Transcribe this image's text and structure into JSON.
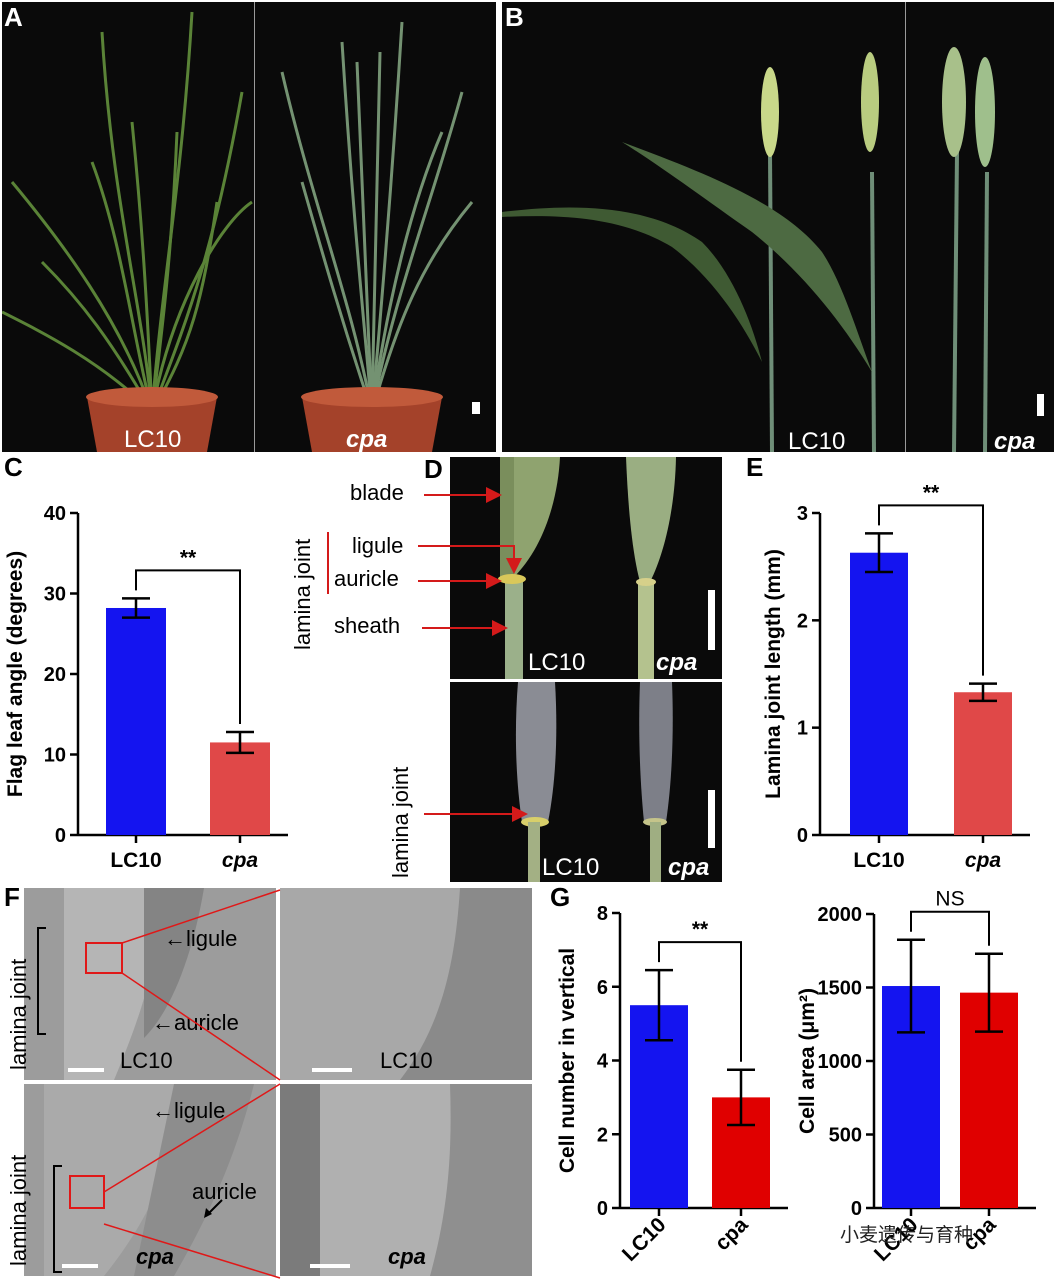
{
  "panels": {
    "A": {
      "letter": "A",
      "labels": [
        "LC10",
        "cpa"
      ]
    },
    "B": {
      "letter": "B",
      "labels": [
        "LC10",
        "cpa"
      ]
    },
    "C": {
      "letter": "C"
    },
    "D": {
      "letter": "D",
      "annotations": {
        "blade": "blade",
        "ligule": "ligule",
        "auricle": "auricle",
        "sheath": "sheath",
        "lamina_joint": "lamina joint"
      },
      "labels": [
        "LC10",
        "cpa"
      ]
    },
    "E": {
      "letter": "E"
    },
    "F": {
      "letter": "F",
      "annotations": {
        "ligule": "←ligule",
        "auricle": "←auricle",
        "auricle2": "auricle",
        "lamina_joint": "lamina joint"
      },
      "labels": [
        "LC10",
        "cpa"
      ]
    },
    "G": {
      "letter": "G"
    }
  },
  "watermark": "小麦遗传与育种",
  "chart_data": [
    {
      "id": "C",
      "type": "bar",
      "categories": [
        "LC10",
        "cpa"
      ],
      "values": [
        28.2,
        11.5
      ],
      "errors": [
        1.2,
        1.3
      ],
      "colors": [
        "#1414f0",
        "#e04848"
      ],
      "ylabel": "Flag leaf angle (degrees)",
      "ylim": [
        0,
        40
      ],
      "yticks": [
        0,
        10,
        20,
        30,
        40
      ],
      "significance": "**"
    },
    {
      "id": "E",
      "type": "bar",
      "categories": [
        "LC10",
        "cpa"
      ],
      "values": [
        2.63,
        1.33
      ],
      "errors": [
        0.18,
        0.08
      ],
      "colors": [
        "#1414f0",
        "#e04848"
      ],
      "ylabel": "Lamina joint length (mm)",
      "ylim": [
        0,
        3
      ],
      "yticks": [
        0,
        1,
        2,
        3
      ],
      "significance": "**"
    },
    {
      "id": "G1",
      "type": "bar",
      "categories": [
        "LC10",
        "cpa"
      ],
      "values": [
        5.5,
        3.0
      ],
      "errors": [
        0.95,
        0.75
      ],
      "colors": [
        "#1414f0",
        "#e00000"
      ],
      "ylabel": "Cell number in vertical",
      "ylim": [
        0,
        8
      ],
      "yticks": [
        0,
        2,
        4,
        6,
        8
      ],
      "significance": "**"
    },
    {
      "id": "G2",
      "type": "bar",
      "categories": [
        "LC10",
        "cpa"
      ],
      "values": [
        1510,
        1465
      ],
      "errors": [
        315,
        265
      ],
      "colors": [
        "#1414f0",
        "#e00000"
      ],
      "ylabel": "Cell area (μm²)",
      "ylim": [
        0,
        2000
      ],
      "yticks": [
        0,
        500,
        1000,
        1500,
        2000
      ],
      "significance": "NS"
    }
  ]
}
